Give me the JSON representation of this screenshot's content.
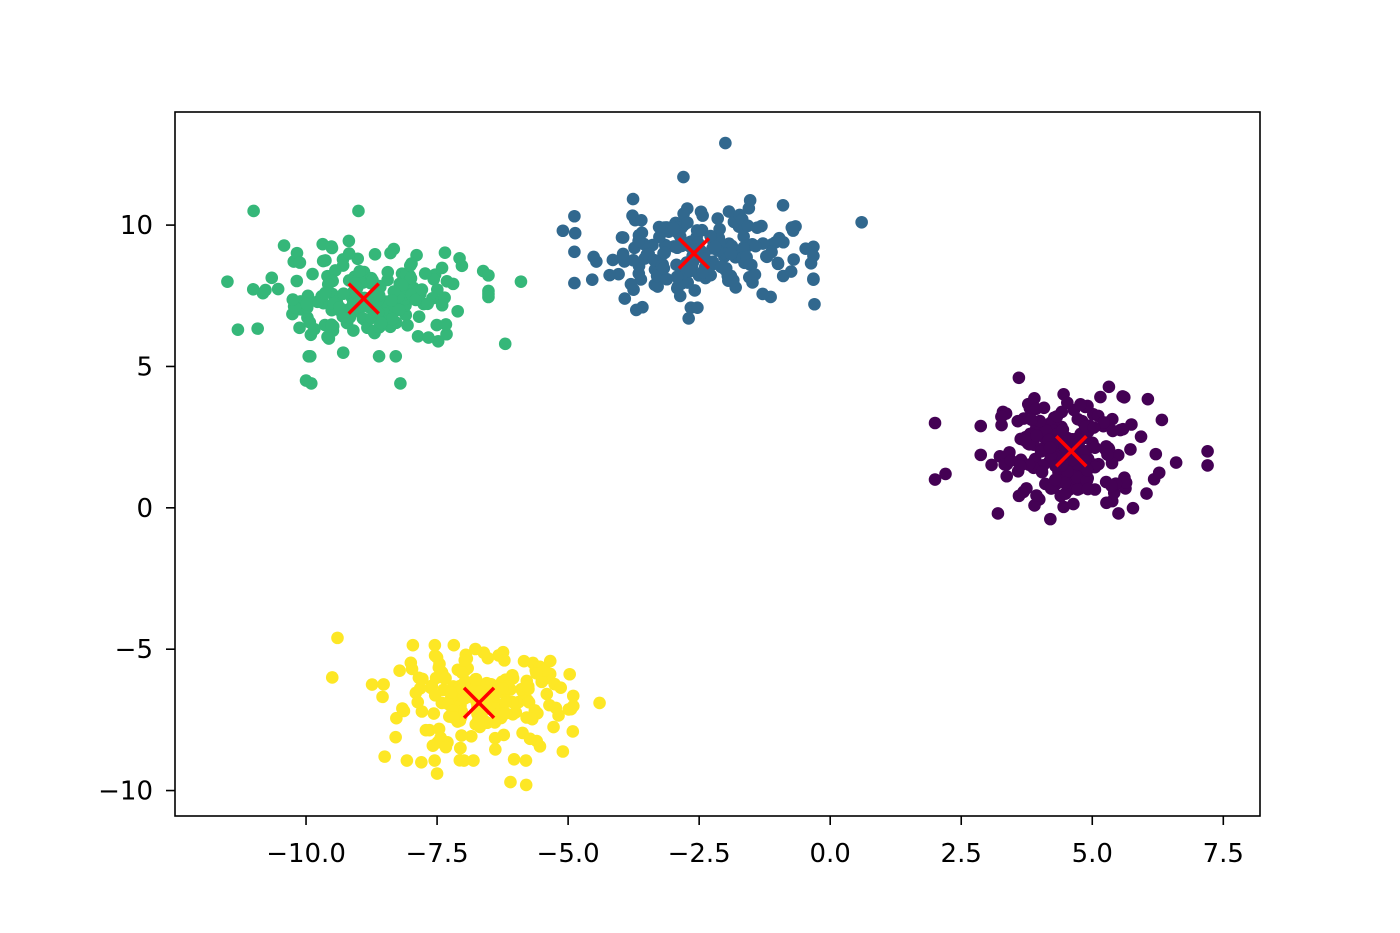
{
  "chart_data": {
    "type": "scatter",
    "title": "",
    "xlabel": "",
    "ylabel": "",
    "xlim": [
      -12.5,
      8.2
    ],
    "ylim": [
      -10.9,
      14.0
    ],
    "xticks": [
      -10.0,
      -7.5,
      -5.0,
      -2.5,
      0.0,
      2.5,
      5.0,
      7.5
    ],
    "xtick_labels": [
      "−10.0",
      "−7.5",
      "−5.0",
      "−2.5",
      "0.0",
      "2.5",
      "5.0",
      "7.5"
    ],
    "yticks": [
      -10,
      -5,
      0,
      5,
      10
    ],
    "ytick_labels": [
      "−10",
      "−5",
      "0",
      "5",
      "10"
    ],
    "grid": false,
    "legend": "none",
    "marker_color": "#ff0000",
    "clusters": [
      {
        "color": "#440154",
        "center": [
          4.6,
          2.0
        ],
        "spread": [
          0.72,
          0.95
        ],
        "n": 200,
        "outliers": [
          [
            3.6,
            4.6
          ],
          [
            2.0,
            1.0
          ],
          [
            2.2,
            1.2
          ],
          [
            3.2,
            -0.2
          ],
          [
            4.2,
            -0.4
          ],
          [
            7.2,
            1.5
          ],
          [
            6.6,
            1.6
          ],
          [
            7.2,
            2.0
          ],
          [
            2.0,
            3.0
          ],
          [
            5.5,
            -0.2
          ]
        ]
      },
      {
        "color": "#31688e",
        "center": [
          -2.6,
          9.0
        ],
        "spread": [
          0.95,
          0.8
        ],
        "n": 200,
        "outliers": [
          [
            -2.0,
            12.9
          ],
          [
            0.6,
            10.1
          ],
          [
            -5.1,
            9.8
          ],
          [
            -0.3,
            7.2
          ],
          [
            -2.7,
            6.7
          ],
          [
            -3.7,
            7.0
          ],
          [
            -0.9,
            10.7
          ],
          [
            -2.8,
            11.7
          ]
        ]
      },
      {
        "color": "#35b779",
        "center": [
          -8.8,
          7.4
        ],
        "spread": [
          0.95,
          0.85
        ],
        "n": 200,
        "outliers": [
          [
            -11.0,
            10.5
          ],
          [
            -9.0,
            10.5
          ],
          [
            -11.5,
            8.0
          ],
          [
            -9.9,
            4.4
          ],
          [
            -8.2,
            4.4
          ],
          [
            -5.9,
            8.0
          ],
          [
            -6.2,
            5.8
          ],
          [
            -11.3,
            6.3
          ],
          [
            -10.0,
            4.5
          ]
        ]
      },
      {
        "color": "#fde725",
        "center": [
          -6.7,
          -6.9
        ],
        "spread": [
          0.85,
          0.85
        ],
        "n": 200,
        "outliers": [
          [
            -9.4,
            -4.6
          ],
          [
            -9.5,
            -6.0
          ],
          [
            -7.5,
            -9.4
          ],
          [
            -6.1,
            -9.7
          ],
          [
            -5.8,
            -9.8
          ],
          [
            -4.4,
            -6.9
          ],
          [
            -8.5,
            -8.8
          ],
          [
            -7.8,
            -9.0
          ]
        ]
      }
    ],
    "centroids": [
      {
        "x": 4.6,
        "y": 2.0
      },
      {
        "x": -2.6,
        "y": 9.0
      },
      {
        "x": -8.9,
        "y": 7.4
      },
      {
        "x": -6.7,
        "y": -6.9
      }
    ]
  }
}
